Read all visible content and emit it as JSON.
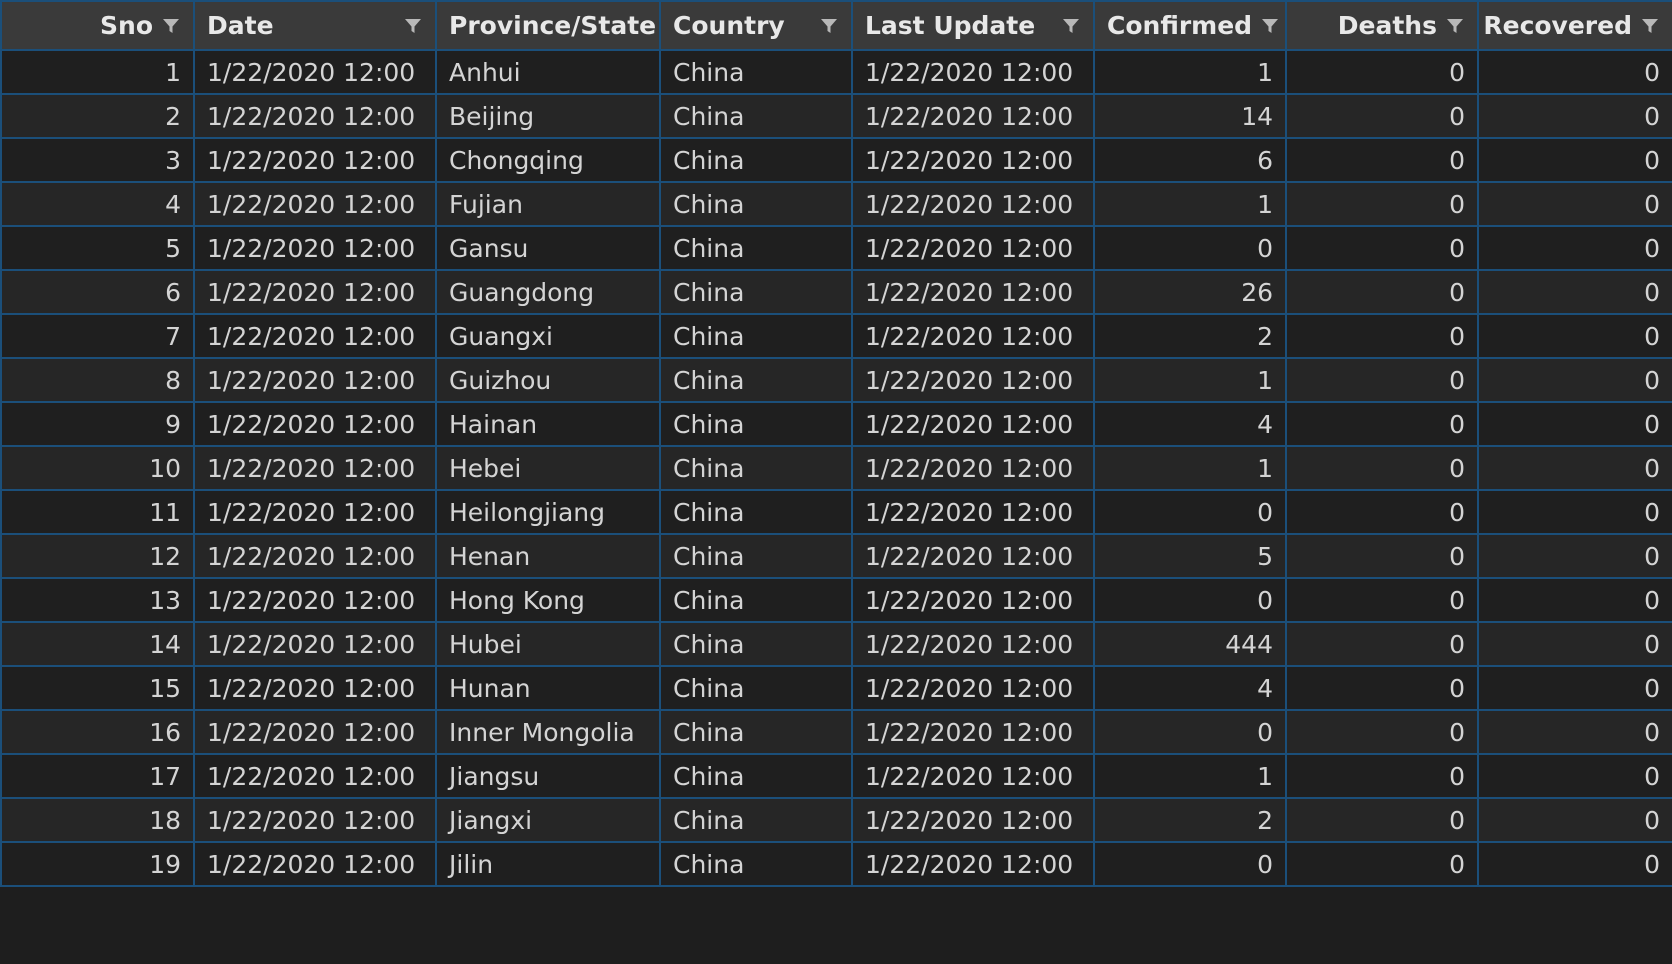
{
  "columns": {
    "sno": "Sno",
    "date": "Date",
    "province": "Province/State",
    "country": "Country",
    "last_update": "Last Update",
    "confirmed": "Confirmed",
    "deaths": "Deaths",
    "recovered": "Recovered"
  },
  "filter_icon": "filter-funnel-icon",
  "colors": {
    "header_bg": "#3a3a3a",
    "cell_bg": "#1f1f1f",
    "grid_line": "#1b4f7a",
    "text": "#d4d4d4"
  },
  "rows": [
    {
      "sno": "1",
      "date": "1/22/2020 12:00",
      "province": "Anhui",
      "country": "China",
      "last_update": "1/22/2020 12:00",
      "confirmed": "1",
      "deaths": "0",
      "recovered": "0"
    },
    {
      "sno": "2",
      "date": "1/22/2020 12:00",
      "province": "Beijing",
      "country": "China",
      "last_update": "1/22/2020 12:00",
      "confirmed": "14",
      "deaths": "0",
      "recovered": "0"
    },
    {
      "sno": "3",
      "date": "1/22/2020 12:00",
      "province": "Chongqing",
      "country": "China",
      "last_update": "1/22/2020 12:00",
      "confirmed": "6",
      "deaths": "0",
      "recovered": "0"
    },
    {
      "sno": "4",
      "date": "1/22/2020 12:00",
      "province": "Fujian",
      "country": "China",
      "last_update": "1/22/2020 12:00",
      "confirmed": "1",
      "deaths": "0",
      "recovered": "0"
    },
    {
      "sno": "5",
      "date": "1/22/2020 12:00",
      "province": "Gansu",
      "country": "China",
      "last_update": "1/22/2020 12:00",
      "confirmed": "0",
      "deaths": "0",
      "recovered": "0"
    },
    {
      "sno": "6",
      "date": "1/22/2020 12:00",
      "province": "Guangdong",
      "country": "China",
      "last_update": "1/22/2020 12:00",
      "confirmed": "26",
      "deaths": "0",
      "recovered": "0"
    },
    {
      "sno": "7",
      "date": "1/22/2020 12:00",
      "province": "Guangxi",
      "country": "China",
      "last_update": "1/22/2020 12:00",
      "confirmed": "2",
      "deaths": "0",
      "recovered": "0"
    },
    {
      "sno": "8",
      "date": "1/22/2020 12:00",
      "province": "Guizhou",
      "country": "China",
      "last_update": "1/22/2020 12:00",
      "confirmed": "1",
      "deaths": "0",
      "recovered": "0"
    },
    {
      "sno": "9",
      "date": "1/22/2020 12:00",
      "province": "Hainan",
      "country": "China",
      "last_update": "1/22/2020 12:00",
      "confirmed": "4",
      "deaths": "0",
      "recovered": "0"
    },
    {
      "sno": "10",
      "date": "1/22/2020 12:00",
      "province": "Hebei",
      "country": "China",
      "last_update": "1/22/2020 12:00",
      "confirmed": "1",
      "deaths": "0",
      "recovered": "0"
    },
    {
      "sno": "11",
      "date": "1/22/2020 12:00",
      "province": "Heilongjiang",
      "country": "China",
      "last_update": "1/22/2020 12:00",
      "confirmed": "0",
      "deaths": "0",
      "recovered": "0"
    },
    {
      "sno": "12",
      "date": "1/22/2020 12:00",
      "province": "Henan",
      "country": "China",
      "last_update": "1/22/2020 12:00",
      "confirmed": "5",
      "deaths": "0",
      "recovered": "0"
    },
    {
      "sno": "13",
      "date": "1/22/2020 12:00",
      "province": "Hong Kong",
      "country": "China",
      "last_update": "1/22/2020 12:00",
      "confirmed": "0",
      "deaths": "0",
      "recovered": "0"
    },
    {
      "sno": "14",
      "date": "1/22/2020 12:00",
      "province": "Hubei",
      "country": "China",
      "last_update": "1/22/2020 12:00",
      "confirmed": "444",
      "deaths": "0",
      "recovered": "0"
    },
    {
      "sno": "15",
      "date": "1/22/2020 12:00",
      "province": "Hunan",
      "country": "China",
      "last_update": "1/22/2020 12:00",
      "confirmed": "4",
      "deaths": "0",
      "recovered": "0"
    },
    {
      "sno": "16",
      "date": "1/22/2020 12:00",
      "province": "Inner Mongolia",
      "country": "China",
      "last_update": "1/22/2020 12:00",
      "confirmed": "0",
      "deaths": "0",
      "recovered": "0"
    },
    {
      "sno": "17",
      "date": "1/22/2020 12:00",
      "province": "Jiangsu",
      "country": "China",
      "last_update": "1/22/2020 12:00",
      "confirmed": "1",
      "deaths": "0",
      "recovered": "0"
    },
    {
      "sno": "18",
      "date": "1/22/2020 12:00",
      "province": "Jiangxi",
      "country": "China",
      "last_update": "1/22/2020 12:00",
      "confirmed": "2",
      "deaths": "0",
      "recovered": "0"
    },
    {
      "sno": "19",
      "date": "1/22/2020 12:00",
      "province": "Jilin",
      "country": "China",
      "last_update": "1/22/2020 12:00",
      "confirmed": "0",
      "deaths": "0",
      "recovered": "0"
    }
  ]
}
